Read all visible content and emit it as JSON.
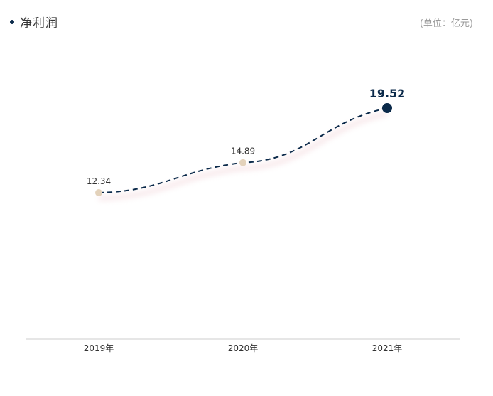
{
  "header": {
    "title": "净利润",
    "unit": "(单位：亿元)"
  },
  "colors": {
    "accent": "#0b2a4a",
    "point": "#e3d2bb",
    "axis": "#cccccc",
    "label": "#333333"
  },
  "chart_data": {
    "type": "line",
    "title": "净利润",
    "unit": "(单位：亿元)",
    "categories": [
      "2019年",
      "2020年",
      "2021年"
    ],
    "values": [
      12.34,
      14.89,
      19.52
    ],
    "value_labels": [
      "12.34",
      "14.89",
      "19.52"
    ],
    "highlight_index": 2,
    "line_style": "dashed",
    "grid": false,
    "ylim": [
      0,
      25
    ]
  }
}
